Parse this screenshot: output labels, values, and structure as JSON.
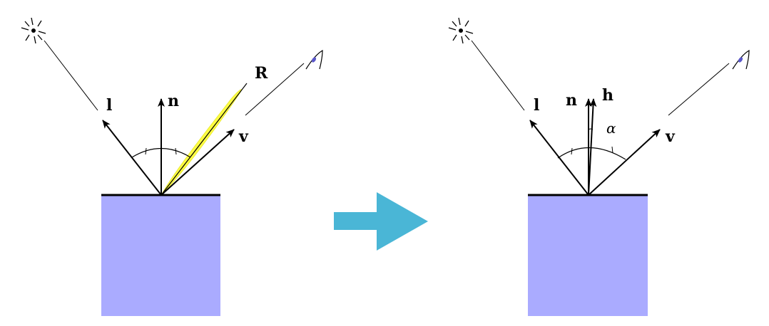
{
  "colors": {
    "block": "#aaabff",
    "lobe": "#ffff44",
    "arrow": "#4ab6d6",
    "eye_iris": "#5a57c8",
    "line": "#000000"
  },
  "icons": {
    "light": "light-source-icon",
    "eye": "eye-icon",
    "transition": "right-arrow-icon"
  },
  "left_panel": {
    "labels": {
      "l": "l",
      "n": "n",
      "r": "R",
      "v": "v"
    }
  },
  "right_panel": {
    "labels": {
      "l": "l",
      "n": "n",
      "h": "h",
      "v": "v",
      "alpha": "α"
    }
  }
}
